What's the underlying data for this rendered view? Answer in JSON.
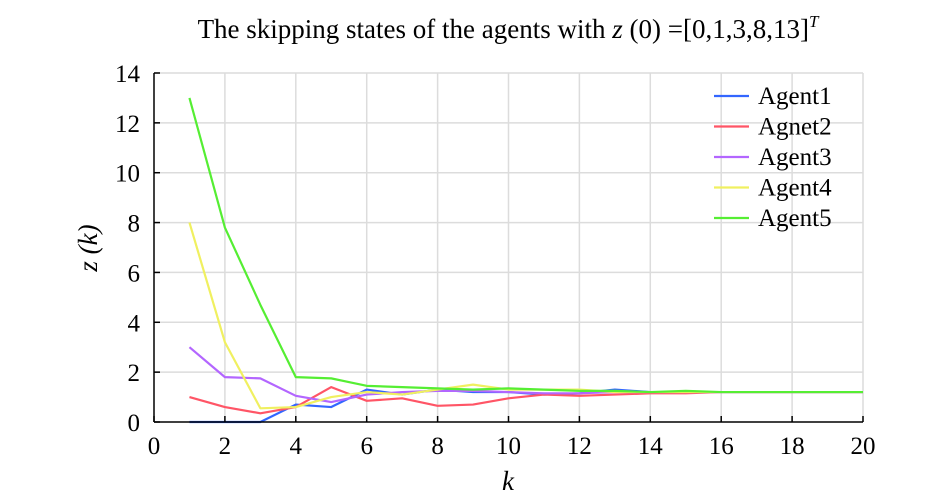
{
  "chart_data": {
    "type": "line",
    "title": {
      "main": "The skipping states of the agents with ",
      "var": "z",
      "rest": " (0) =[0,1,3,8,13]",
      "sup": "T"
    },
    "xlabel": "k",
    "ylabel": {
      "var": "z",
      "arg": " (k)"
    },
    "xlim": [
      0,
      20
    ],
    "ylim": [
      0,
      14
    ],
    "xticks": [
      0,
      2,
      4,
      6,
      8,
      10,
      12,
      14,
      16,
      18,
      20
    ],
    "yticks": [
      0,
      2,
      4,
      6,
      8,
      10,
      12,
      14
    ],
    "grid": true,
    "legend_position": "top-right",
    "x": [
      1,
      2,
      3,
      4,
      5,
      6,
      7,
      8,
      9,
      10,
      11,
      12,
      13,
      14,
      15,
      16,
      17,
      18,
      19,
      20
    ],
    "series": [
      {
        "name": "Agent1",
        "color": "#3366ff",
        "values": [
          0,
          0,
          0,
          0.7,
          0.6,
          1.3,
          1.1,
          1.3,
          1.2,
          1.2,
          1.1,
          1.15,
          1.3,
          1.2,
          1.2,
          1.2,
          1.2,
          1.2,
          1.2,
          1.2
        ]
      },
      {
        "name": "Agnet2",
        "color": "#ff5566",
        "values": [
          1.0,
          0.6,
          0.35,
          0.6,
          1.4,
          0.85,
          0.95,
          0.65,
          0.7,
          0.95,
          1.1,
          1.05,
          1.1,
          1.15,
          1.15,
          1.2,
          1.2,
          1.2,
          1.2,
          1.2
        ]
      },
      {
        "name": "Agent3",
        "color": "#b366ff",
        "values": [
          3.0,
          1.8,
          1.75,
          1.05,
          0.8,
          1.1,
          1.2,
          1.25,
          1.25,
          1.2,
          1.15,
          1.15,
          1.2,
          1.2,
          1.2,
          1.2,
          1.2,
          1.2,
          1.2,
          1.2
        ]
      },
      {
        "name": "Agent4",
        "color": "#f0f060",
        "values": [
          8.0,
          3.2,
          0.55,
          0.6,
          1.0,
          1.2,
          1.1,
          1.3,
          1.5,
          1.3,
          1.3,
          1.3,
          1.2,
          1.2,
          1.2,
          1.2,
          1.2,
          1.2,
          1.2,
          1.2
        ]
      },
      {
        "name": "Agent5",
        "color": "#55ee33",
        "values": [
          13.0,
          7.8,
          4.7,
          1.8,
          1.75,
          1.45,
          1.4,
          1.35,
          1.3,
          1.35,
          1.3,
          1.25,
          1.25,
          1.2,
          1.25,
          1.2,
          1.2,
          1.2,
          1.2,
          1.2
        ]
      }
    ]
  }
}
